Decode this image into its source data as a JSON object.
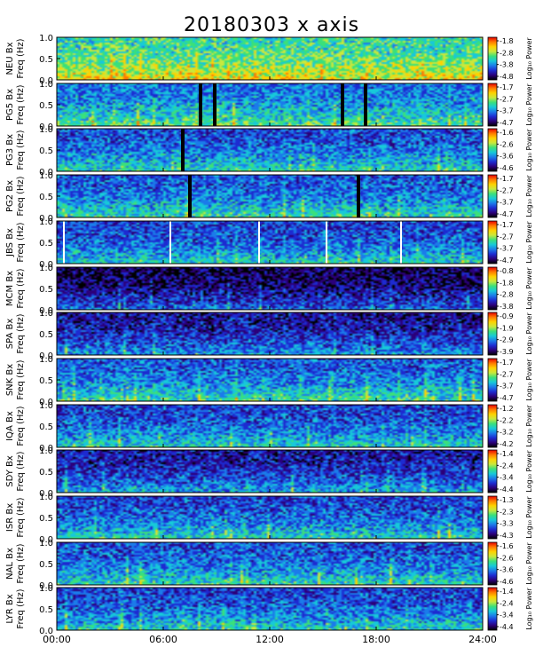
{
  "chart_data": {
    "type": "heatmap",
    "title": "20180303 x axis",
    "x_ticks": [
      "00:00",
      "06:00",
      "12:00",
      "18:00",
      "24:00"
    ],
    "x_range_hours": [
      0,
      24
    ],
    "y_ticks": [
      "0.0",
      "0.5",
      "1.0"
    ],
    "ylim_hz": [
      0,
      1
    ],
    "colorbar_label": "Log₁₀ Power",
    "colormap": [
      "#000000",
      "#2b007a",
      "#1d2bd1",
      "#1b7bea",
      "#17c9d9",
      "#3be07a",
      "#c9e83c",
      "#ffd200",
      "#ff7a00",
      "#e80000"
    ],
    "panels": [
      {
        "station": "NEU",
        "ylabel_top": "NEU Bx",
        "ylabel_bottom": "Freq (Hz)",
        "cbar_ticks": [
          "-1.8",
          "-2.8",
          "-3.8",
          "-4.8"
        ],
        "base": 0.56,
        "gaps": [],
        "whites": [],
        "seed": 11
      },
      {
        "station": "PG5",
        "ylabel_top": "PG5 Bx",
        "ylabel_bottom": "Freq (Hz)",
        "cbar_ticks": [
          "-1.7",
          "-2.7",
          "-3.7",
          "-4.7"
        ],
        "base": 0.38,
        "gaps": [
          8.1,
          8.9,
          16.1,
          17.4
        ],
        "whites": [],
        "seed": 23
      },
      {
        "station": "PG3",
        "ylabel_top": "PG3 Bx",
        "ylabel_bottom": "Freq (Hz)",
        "cbar_ticks": [
          "-1.6",
          "-2.6",
          "-3.6",
          "-4.6"
        ],
        "base": 0.32,
        "gaps": [
          7.1
        ],
        "whites": [],
        "seed": 37
      },
      {
        "station": "PG2",
        "ylabel_top": "PG2 Bx",
        "ylabel_bottom": "Freq (Hz)",
        "cbar_ticks": [
          "-1.7",
          "-2.7",
          "-3.7",
          "-4.7"
        ],
        "base": 0.33,
        "gaps": [
          7.5,
          17.0
        ],
        "whites": [],
        "seed": 41
      },
      {
        "station": "JBS",
        "ylabel_top": "JBS Bx",
        "ylabel_bottom": "Freq (Hz)",
        "cbar_ticks": [
          "-1.7",
          "-2.7",
          "-3.7",
          "-4.7"
        ],
        "base": 0.3,
        "gaps": [],
        "whites": [
          0.4,
          6.4,
          11.4,
          15.2,
          19.4
        ],
        "seed": 53
      },
      {
        "station": "MCM",
        "ylabel_top": "MCM Bx",
        "ylabel_bottom": "Freq (Hz)",
        "cbar_ticks": [
          "-0.8",
          "-1.8",
          "-2.8",
          "-3.8"
        ],
        "base": 0.12,
        "gaps": [],
        "whites": [],
        "seed": 61
      },
      {
        "station": "SPA",
        "ylabel_top": "SPA Bx",
        "ylabel_bottom": "Freq (Hz)",
        "cbar_ticks": [
          "-0.9",
          "-1.9",
          "-2.9",
          "-3.9"
        ],
        "base": 0.2,
        "gaps": [],
        "whites": [],
        "seed": 71
      },
      {
        "station": "SNK",
        "ylabel_top": "SNK Bx",
        "ylabel_bottom": "Freq (Hz)",
        "cbar_ticks": [
          "-1.7",
          "-2.7",
          "-3.7",
          "-4.7"
        ],
        "base": 0.34,
        "gaps": [],
        "whites": [],
        "seed": 83
      },
      {
        "station": "IQA",
        "ylabel_top": "IQA Bx",
        "ylabel_bottom": "Freq (Hz)",
        "cbar_ticks": [
          "-1.2",
          "-2.2",
          "-3.2",
          "-4.2"
        ],
        "base": 0.3,
        "gaps": [],
        "whites": [],
        "seed": 97
      },
      {
        "station": "SDY",
        "ylabel_top": "SDY Bx",
        "ylabel_bottom": "Freq (Hz)",
        "cbar_ticks": [
          "-1.4",
          "-2.4",
          "-3.4",
          "-4.4"
        ],
        "base": 0.22,
        "gaps": [],
        "whites": [],
        "seed": 101
      },
      {
        "station": "ISR",
        "ylabel_top": "ISR Bx",
        "ylabel_bottom": "Freq (Hz)",
        "cbar_ticks": [
          "-1.3",
          "-2.3",
          "-3.3",
          "-4.3"
        ],
        "base": 0.3,
        "gaps": [],
        "whites": [],
        "seed": 113
      },
      {
        "station": "NAL",
        "ylabel_top": "NAL Bx",
        "ylabel_bottom": "Freq (Hz)",
        "cbar_ticks": [
          "-1.6",
          "-2.6",
          "-3.6",
          "-4.6"
        ],
        "base": 0.32,
        "gaps": [],
        "whites": [],
        "seed": 127
      },
      {
        "station": "LYR",
        "ylabel_top": "LYR Bx",
        "ylabel_bottom": "Freq (Hz)",
        "cbar_ticks": [
          "-1.4",
          "-2.4",
          "-3.4",
          "-4.4"
        ],
        "base": 0.3,
        "gaps": [],
        "whites": [],
        "seed": 131
      }
    ]
  }
}
